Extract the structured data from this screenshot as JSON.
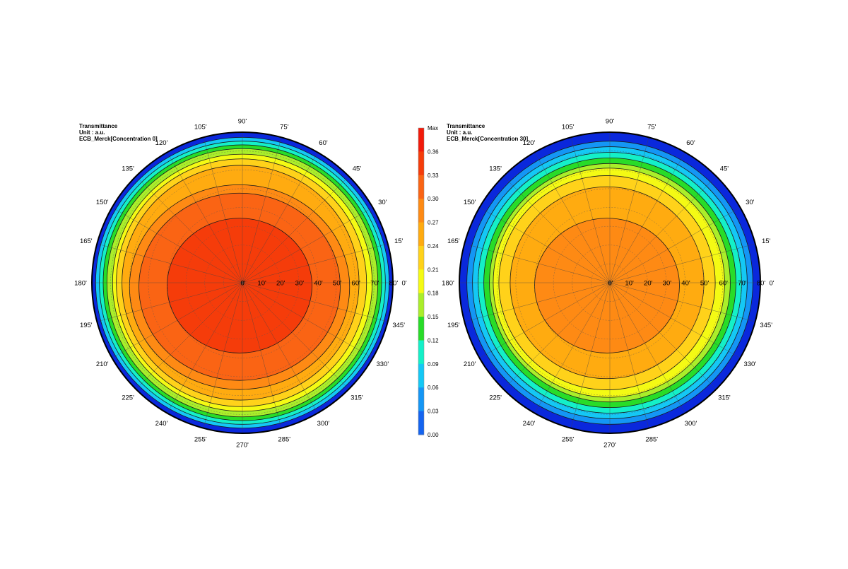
{
  "chart_data": [
    {
      "type": "heatmap",
      "subtype": "polar-contour",
      "header": [
        "Transmittance",
        "Unit : a.u.",
        "ECB_Merck[Concentration 0]"
      ],
      "angular_ticks": [
        "0'",
        "15'",
        "30'",
        "45'",
        "60'",
        "75'",
        "90'",
        "105'",
        "120'",
        "135'",
        "150'",
        "165'",
        "180'",
        "195'",
        "210'",
        "225'",
        "240'",
        "255'",
        "270'",
        "285'",
        "300'",
        "315'",
        "330'",
        "345'"
      ],
      "radial_ticks": [
        "0'",
        "10'",
        "20'",
        "30'",
        "40'",
        "50'",
        "60'",
        "70'",
        "80'"
      ],
      "radial_range": [
        0,
        80
      ],
      "max_value": 0.37,
      "peak_location": "centre, shifted toward 180' side",
      "contours": [
        {
          "level": 0.33,
          "r_right": 37,
          "r_left": 40
        },
        {
          "level": 0.3,
          "r_right": 52,
          "r_left": 55
        },
        {
          "level": 0.27,
          "r_right": 57,
          "r_left": 60
        },
        {
          "level": 0.24,
          "r_right": 62,
          "r_left": 64
        },
        {
          "level": 0.21,
          "r_right": 66,
          "r_left": 67
        },
        {
          "level": 0.18,
          "r_right": 69,
          "r_left": 69
        },
        {
          "level": 0.15,
          "r_right": 72,
          "r_left": 72
        },
        {
          "level": 0.12,
          "r_right": 74,
          "r_left": 74
        },
        {
          "level": 0.09,
          "r_right": 76,
          "r_left": 76
        },
        {
          "level": 0.06,
          "r_right": 78,
          "r_left": 78
        }
      ]
    },
    {
      "type": "heatmap",
      "subtype": "polar-contour",
      "header": [
        "Transmittance",
        "Unit : a.u.",
        "ECB_Merck[Concentration 30]"
      ],
      "angular_ticks": [
        "0'",
        "15'",
        "30'",
        "45'",
        "60'",
        "75'",
        "90'",
        "105'",
        "120'",
        "135'",
        "150'",
        "165'",
        "180'",
        "195'",
        "210'",
        "225'",
        "240'",
        "255'",
        "270'",
        "285'",
        "300'",
        "315'",
        "330'",
        "345'"
      ],
      "radial_ticks": [
        "0'",
        "10'",
        "20'",
        "30'",
        "40'",
        "50'",
        "60'",
        "70'",
        "80'"
      ],
      "radial_range": [
        0,
        80
      ],
      "max_value": 0.29,
      "peak_location": "centre",
      "contours": [
        {
          "level": 0.27,
          "r_right": 37,
          "r_left": 40
        },
        {
          "level": 0.24,
          "r_right": 50,
          "r_left": 53
        },
        {
          "level": 0.21,
          "r_right": 56,
          "r_left": 59
        },
        {
          "level": 0.18,
          "r_right": 61,
          "r_left": 62
        },
        {
          "level": 0.15,
          "r_right": 64,
          "r_left": 64
        },
        {
          "level": 0.12,
          "r_right": 67,
          "r_left": 67
        },
        {
          "level": 0.09,
          "r_right": 70,
          "r_left": 70
        },
        {
          "level": 0.06,
          "r_right": 73,
          "r_left": 73
        },
        {
          "level": 0.03,
          "r_right": 76,
          "r_left": 76
        }
      ]
    }
  ],
  "colorbar": {
    "labels": [
      "Max",
      "0.36",
      "0.33",
      "0.30",
      "0.27",
      "0.24",
      "0.21",
      "0.18",
      "0.15",
      "0.12",
      "0.09",
      "0.06",
      "0.03",
      "0.00"
    ],
    "levels": [
      0.39,
      0.36,
      0.33,
      0.3,
      0.27,
      0.24,
      0.21,
      0.18,
      0.15,
      0.12,
      0.09,
      0.06,
      0.03,
      0.0
    ],
    "colors": [
      "#f21a0a",
      "#f53c0a",
      "#fa6414",
      "#fe8a14",
      "#ffab10",
      "#ffd21a",
      "#f4fa14",
      "#aaee2a",
      "#28dc28",
      "#14f0c8",
      "#14c8f5",
      "#1496f5",
      "#1464f0",
      "#0a28dc"
    ]
  }
}
